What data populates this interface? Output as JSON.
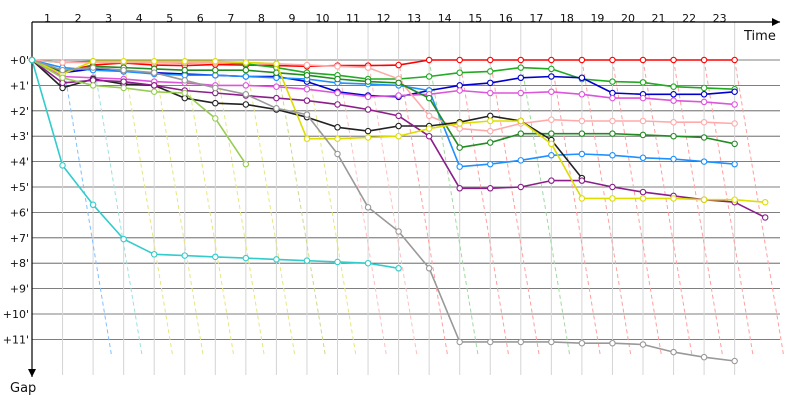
{
  "chart_data": {
    "type": "line",
    "xlabel": "Time",
    "ylabel": "Gap",
    "x_ticks": [
      "1",
      "2",
      "3",
      "4",
      "5",
      "6",
      "7",
      "8",
      "9",
      "10",
      "11",
      "12",
      "13",
      "14",
      "15",
      "16",
      "17",
      "18",
      "19",
      "20",
      "21",
      "22",
      "23"
    ],
    "y_ticks": [
      "+0'",
      "+1'",
      "+2'",
      "+3'",
      "+4'",
      "+5'",
      "+6'",
      "+7'",
      "+8'",
      "+9'",
      "+10'",
      "+11'"
    ],
    "xlim": [
      0,
      24.2
    ],
    "ylim": [
      0,
      11.5
    ],
    "grid": true,
    "series": [
      {
        "color": "#ff0000",
        "x": [
          0,
          1,
          2,
          3,
          4,
          5,
          6,
          7,
          8,
          9,
          10,
          11,
          12,
          13,
          14,
          15,
          16,
          17,
          18,
          19,
          20,
          21,
          22,
          23
        ],
        "y": [
          0,
          0.45,
          0.2,
          0.12,
          0.2,
          0.22,
          0.18,
          0.2,
          0.22,
          0.25,
          0.22,
          0.22,
          0.2,
          0,
          0,
          0,
          0,
          0,
          0,
          0,
          0,
          0,
          0,
          0
        ]
      },
      {
        "color": "#22aa22",
        "x": [
          0,
          1,
          2,
          3,
          4,
          5,
          6,
          7,
          8,
          9,
          10,
          11,
          12,
          13,
          14,
          15,
          16,
          17,
          18,
          19,
          20,
          21,
          22,
          23
        ],
        "y": [
          0,
          0.1,
          0.05,
          0.08,
          0.1,
          0.12,
          0.1,
          0.15,
          0.3,
          0.5,
          0.6,
          0.75,
          0.75,
          0.65,
          0.5,
          0.45,
          0.3,
          0.35,
          0.75,
          0.85,
          0.88,
          1.05,
          1.1,
          1.15
        ]
      },
      {
        "color": "#0000cc",
        "x": [
          0,
          1,
          2,
          3,
          4,
          5,
          6,
          7,
          8,
          9,
          10,
          11,
          12,
          13,
          14,
          15,
          16,
          17,
          18,
          19,
          20,
          21,
          22,
          23
        ],
        "y": [
          0,
          0.5,
          0.35,
          0.45,
          0.5,
          0.55,
          0.6,
          0.65,
          0.65,
          0.85,
          1.25,
          1.4,
          1.45,
          1.2,
          1.0,
          0.9,
          0.7,
          0.65,
          0.7,
          1.3,
          1.35,
          1.35,
          1.35,
          1.25
        ]
      },
      {
        "color": "#1e90ff",
        "x": [
          0,
          1,
          2,
          3,
          4,
          5,
          6,
          7,
          8,
          9,
          10,
          11,
          12,
          13,
          14,
          15,
          16,
          17,
          18,
          19,
          20,
          21,
          22,
          23
        ],
        "y": [
          0,
          0.3,
          0.4,
          0.45,
          0.55,
          0.6,
          0.6,
          0.65,
          0.7,
          0.75,
          0.9,
          0.95,
          1.0,
          1.2,
          4.2,
          4.1,
          3.95,
          3.75,
          3.7,
          3.75,
          3.85,
          3.9,
          4.0,
          4.1
        ]
      },
      {
        "color": "#dd55dd",
        "x": [
          0,
          1,
          2,
          3,
          4,
          5,
          6,
          7,
          8,
          9,
          10,
          11,
          12,
          13,
          14,
          15,
          16,
          17,
          18,
          19,
          20,
          21,
          22,
          23
        ],
        "y": [
          0,
          0.65,
          0.7,
          0.75,
          0.85,
          0.9,
          1.0,
          1.0,
          1.05,
          1.15,
          1.3,
          1.45,
          1.4,
          1.35,
          1.2,
          1.3,
          1.3,
          1.25,
          1.35,
          1.5,
          1.5,
          1.6,
          1.65,
          1.75
        ]
      },
      {
        "color": "#ffaaaa",
        "x": [
          0,
          1,
          2,
          3,
          4,
          5,
          6,
          7,
          8,
          9,
          10,
          11,
          12,
          13,
          14,
          15,
          16,
          17,
          18,
          19,
          20,
          21,
          22,
          23
        ],
        "y": [
          0,
          0.1,
          0.1,
          0.1,
          0.1,
          0.1,
          0.1,
          0.1,
          0.15,
          0.2,
          0.25,
          0.3,
          0.75,
          2.2,
          2.7,
          2.8,
          2.5,
          2.35,
          2.4,
          2.4,
          2.4,
          2.45,
          2.45,
          2.5
        ]
      },
      {
        "color": "#228b22",
        "x": [
          0,
          1,
          2,
          3,
          4,
          5,
          6,
          7,
          8,
          9,
          10,
          11,
          12,
          13,
          14,
          15,
          16,
          17,
          18,
          19,
          20,
          21,
          22,
          23
        ],
        "y": [
          0,
          0.45,
          0.25,
          0.3,
          0.35,
          0.4,
          0.4,
          0.4,
          0.5,
          0.6,
          0.75,
          0.85,
          0.9,
          1.5,
          3.45,
          3.25,
          2.9,
          2.9,
          2.9,
          2.9,
          2.95,
          3.0,
          3.05,
          3.3
        ]
      },
      {
        "color": "#222222",
        "x": [
          0,
          1,
          2,
          3,
          4,
          5,
          6,
          7,
          8,
          9,
          10,
          11,
          12,
          13,
          14,
          15,
          16,
          17,
          18
        ],
        "y": [
          0,
          1.1,
          0.75,
          0.95,
          1.0,
          1.5,
          1.7,
          1.75,
          1.95,
          2.25,
          2.65,
          2.8,
          2.6,
          2.6,
          2.45,
          2.2,
          2.4,
          3.15,
          4.65
        ]
      },
      {
        "color": "#8b1e8b",
        "x": [
          0,
          1,
          2,
          3,
          4,
          5,
          6,
          7,
          8,
          9,
          10,
          11,
          12,
          13,
          14,
          15,
          16,
          17,
          18,
          19,
          20,
          21,
          22,
          23,
          24
        ],
        "y": [
          0,
          0.9,
          0.8,
          0.85,
          1.0,
          1.2,
          1.3,
          1.4,
          1.5,
          1.6,
          1.75,
          1.95,
          2.2,
          3.0,
          5.05,
          5.05,
          5.0,
          4.75,
          4.75,
          5.0,
          5.2,
          5.35,
          5.5,
          5.6,
          6.2
        ]
      },
      {
        "color": "#dddd00",
        "x": [
          0,
          1,
          2,
          3,
          4,
          5,
          6,
          7,
          8,
          9,
          10,
          11,
          12,
          13,
          14,
          15,
          16,
          17,
          18,
          19,
          20,
          21,
          22,
          23,
          24
        ],
        "y": [
          0,
          0.55,
          0.05,
          0.05,
          0.05,
          0.05,
          0.05,
          0.1,
          0.15,
          3.1,
          3.1,
          3.05,
          3.0,
          2.7,
          2.5,
          2.4,
          2.4,
          3.3,
          5.45,
          5.45,
          5.45,
          5.45,
          5.5,
          5.5,
          5.6
        ]
      },
      {
        "color": "#999999",
        "x": [
          0,
          1,
          2,
          3,
          4,
          5,
          6,
          7,
          8,
          9,
          10,
          11,
          12,
          13,
          14,
          15,
          16,
          17,
          18,
          19,
          20,
          21,
          22,
          23
        ],
        "y": [
          0,
          0.4,
          0.3,
          0.4,
          0.5,
          0.8,
          1.1,
          1.35,
          1.9,
          2.15,
          3.7,
          5.8,
          6.75,
          8.2,
          11.1,
          11.1,
          11.1,
          11.1,
          11.15,
          11.15,
          11.2,
          11.5,
          11.7,
          11.85
        ]
      },
      {
        "color": "#99cc55",
        "x": [
          0,
          1,
          2,
          3,
          4,
          5,
          6,
          7
        ],
        "y": [
          0,
          0.7,
          1.0,
          1.1,
          1.25,
          1.3,
          2.3,
          4.1
        ]
      },
      {
        "color": "#33cccc",
        "x": [
          0,
          1,
          2,
          3,
          4,
          5,
          6,
          7,
          8,
          9,
          10,
          11,
          12
        ],
        "y": [
          0,
          4.15,
          5.7,
          7.05,
          7.65,
          7.7,
          7.75,
          7.8,
          7.85,
          7.9,
          7.95,
          8.0,
          8.2
        ]
      }
    ]
  }
}
